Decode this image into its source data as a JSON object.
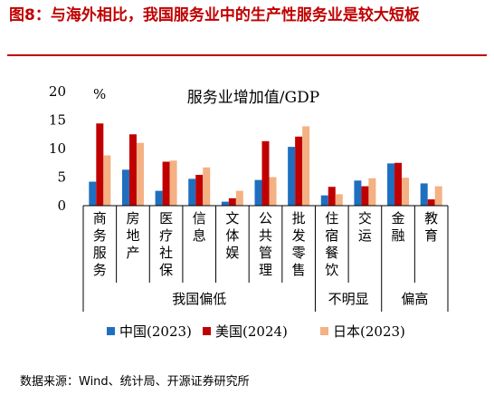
{
  "figure_title": "图8：与海外相比，我国服务业中的生产性服务业是较大短板",
  "source": "数据来源：Wind、统计局、开源证券研究所",
  "chart_data": {
    "type": "bar",
    "title": "服务业增加值/GDP",
    "ylabel": "%",
    "ylim": [
      0,
      20
    ],
    "yticks": [
      0,
      5,
      10,
      15,
      20
    ],
    "categories": [
      "商务服务",
      "房地产",
      "医疗社保",
      "信息",
      "文体娱",
      "公共管理",
      "批发零售",
      "住宿餐饮",
      "交运",
      "金融",
      "教育"
    ],
    "series": [
      {
        "name": "中国(2023)",
        "color": "#1f6fc0",
        "values": [
          4.2,
          6.3,
          2.6,
          4.7,
          0.7,
          4.5,
          10.3,
          1.8,
          4.4,
          7.4,
          3.9
        ]
      },
      {
        "name": "美国(2024)",
        "color": "#c00000",
        "values": [
          14.4,
          12.5,
          7.7,
          5.4,
          1.3,
          11.3,
          12.1,
          3.3,
          3.4,
          7.5,
          1.1
        ]
      },
      {
        "name": "日本(2023)",
        "color": "#f4b183",
        "values": [
          8.8,
          11.0,
          7.9,
          6.7,
          2.6,
          5.0,
          13.9,
          2.0,
          4.8,
          4.9,
          3.4
        ]
      }
    ],
    "groups": [
      {
        "label": "我国偏低",
        "start": 0,
        "end": 6
      },
      {
        "label": "不明显",
        "start": 7,
        "end": 8
      },
      {
        "label": "偏高",
        "start": 9,
        "end": 10
      }
    ],
    "legend_position": "bottom"
  }
}
